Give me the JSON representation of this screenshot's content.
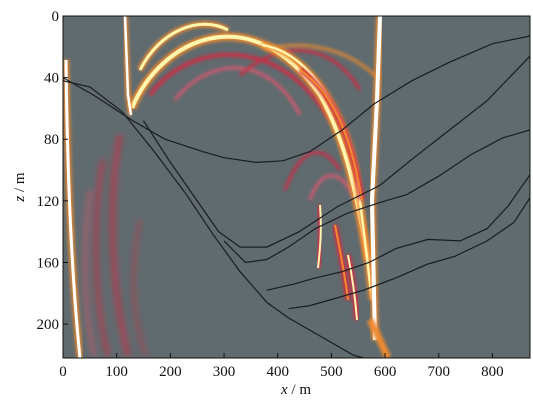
{
  "chart_data": {
    "type": "heatmap",
    "title": "",
    "xlabel": {
      "var": "x",
      "sep": " / ",
      "unit": "m"
    },
    "ylabel": {
      "var": "z",
      "sep": " / ",
      "unit": "m"
    },
    "xlim": [
      0,
      870
    ],
    "ylim": [
      0,
      222
    ],
    "y_inverted": true,
    "x_ticks": [
      "0",
      "100",
      "200",
      "300",
      "400",
      "500",
      "600",
      "700",
      "800"
    ],
    "x_tick_values": [
      0,
      100,
      200,
      300,
      400,
      500,
      600,
      700,
      800
    ],
    "y_ticks": [
      "0",
      "40",
      "80",
      "120",
      "160",
      "200"
    ],
    "y_tick_values": [
      0,
      40,
      80,
      120,
      160,
      200
    ],
    "colors": {
      "background": "#606b6f",
      "red": "#d92540",
      "pink": "#e9556f",
      "orange": "#f08a2e",
      "yellow": "#fff6b0",
      "white": "#ffffff",
      "reflector": "#1a1d1f"
    },
    "reflectors": [
      {
        "name": "reflector-1",
        "points": [
          [
            0,
            40
          ],
          [
            60,
            52
          ],
          [
            130,
            68
          ],
          [
            190,
            80
          ],
          [
            260,
            88
          ],
          [
            300,
            92
          ],
          [
            360,
            95
          ],
          [
            410,
            94
          ],
          [
            460,
            88
          ],
          [
            520,
            74
          ],
          [
            580,
            57
          ],
          [
            650,
            42
          ],
          [
            720,
            30
          ],
          [
            800,
            18
          ],
          [
            870,
            13
          ]
        ]
      },
      {
        "name": "reflector-2",
        "points": [
          [
            0,
            42
          ],
          [
            50,
            46
          ],
          [
            110,
            62
          ],
          [
            170,
            88
          ],
          [
            230,
            116
          ],
          [
            280,
            142
          ],
          [
            330,
            166
          ],
          [
            380,
            186
          ],
          [
            420,
            196
          ],
          [
            480,
            208
          ],
          [
            540,
            220
          ],
          [
            560,
            222
          ]
        ]
      },
      {
        "name": "reflector-3",
        "points": [
          [
            150,
            68
          ],
          [
            200,
            95
          ],
          [
            250,
            120
          ],
          [
            290,
            140
          ],
          [
            330,
            150
          ],
          [
            380,
            150
          ],
          [
            440,
            140
          ],
          [
            510,
            124
          ],
          [
            590,
            110
          ],
          [
            650,
            93
          ],
          [
            720,
            74
          ],
          [
            790,
            55
          ],
          [
            870,
            26
          ]
        ]
      },
      {
        "name": "reflector-4",
        "points": [
          [
            300,
            146
          ],
          [
            340,
            160
          ],
          [
            380,
            158
          ],
          [
            420,
            150
          ],
          [
            470,
            138
          ],
          [
            530,
            128
          ],
          [
            600,
            120
          ],
          [
            640,
            116
          ],
          [
            700,
            104
          ],
          [
            760,
            90
          ],
          [
            820,
            79
          ],
          [
            870,
            74
          ]
        ]
      },
      {
        "name": "reflector-5",
        "points": [
          [
            380,
            178
          ],
          [
            430,
            174
          ],
          [
            470,
            170
          ],
          [
            520,
            166
          ],
          [
            570,
            160
          ],
          [
            620,
            151
          ],
          [
            680,
            145
          ],
          [
            740,
            146
          ],
          [
            790,
            138
          ],
          [
            830,
            123
          ],
          [
            870,
            103
          ]
        ]
      },
      {
        "name": "reflector-6",
        "points": [
          [
            420,
            190
          ],
          [
            460,
            188
          ],
          [
            500,
            184
          ],
          [
            560,
            178
          ],
          [
            620,
            170
          ],
          [
            680,
            161
          ],
          [
            730,
            156
          ],
          [
            790,
            146
          ],
          [
            840,
            134
          ],
          [
            870,
            118
          ]
        ]
      }
    ]
  }
}
